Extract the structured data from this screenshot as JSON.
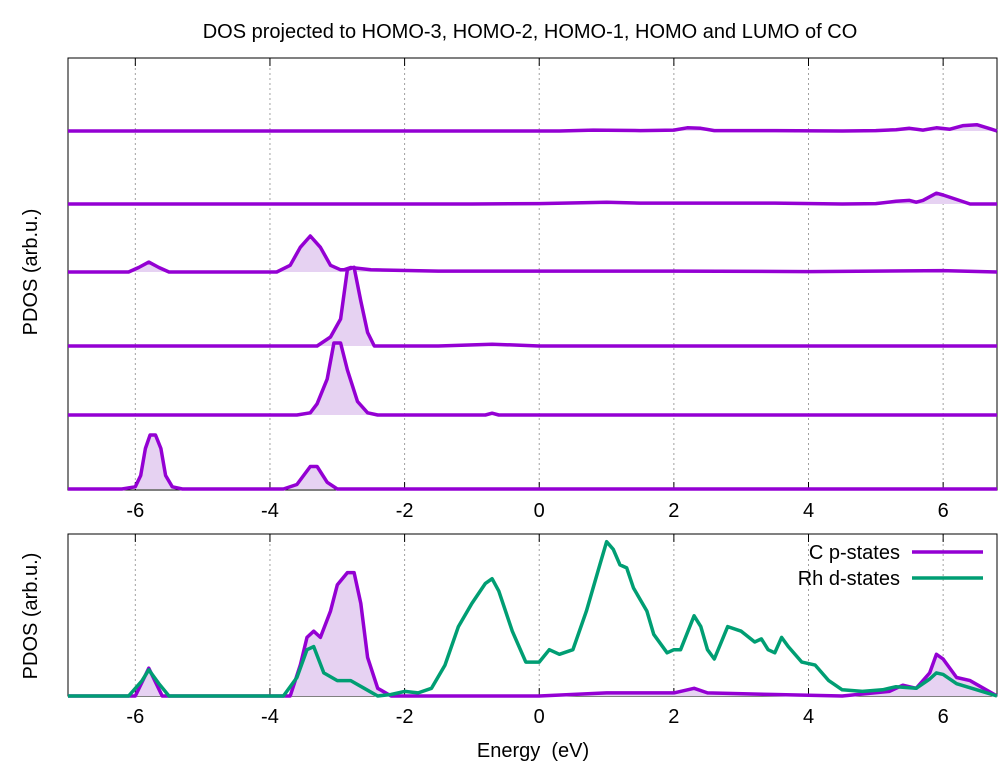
{
  "chart_data": [
    {
      "type": "area",
      "title": "DOS projected to HOMO-3, HOMO-2, HOMO-1, HOMO and LUMO of CO",
      "xlabel": "",
      "ylabel": "PDOS (arb.u.)",
      "xlim": [
        -7,
        6.8
      ],
      "x_ticks": [
        -6,
        -4,
        -2,
        0,
        2,
        4,
        6
      ],
      "x_tick_labels": [
        "-6",
        "-4",
        "-2",
        "0",
        "2",
        "4",
        "6"
      ],
      "grid": "vertical dotted",
      "series_color": "#9400d3",
      "fill_color": "#e6d2f2",
      "panels_top_to_bottom": [
        {
          "baseline": 0.0,
          "points": [
            [
              -7,
              0.0
            ],
            [
              0.3,
              0.0
            ],
            [
              0.8,
              0.02
            ],
            [
              1.5,
              0.01
            ],
            [
              2.0,
              0.02
            ],
            [
              2.2,
              0.07
            ],
            [
              2.4,
              0.06
            ],
            [
              2.6,
              0.01
            ],
            [
              3.5,
              0.01
            ],
            [
              4.5,
              0.0
            ],
            [
              5.0,
              0.01
            ],
            [
              5.3,
              0.03
            ],
            [
              5.5,
              0.06
            ],
            [
              5.7,
              0.02
            ],
            [
              5.9,
              0.07
            ],
            [
              6.1,
              0.04
            ],
            [
              6.3,
              0.12
            ],
            [
              6.5,
              0.14
            ],
            [
              6.7,
              0.05
            ],
            [
              6.8,
              0.0
            ]
          ]
        },
        {
          "baseline": 0.0,
          "points": [
            [
              -7,
              0.0
            ],
            [
              -1.0,
              0.0
            ],
            [
              0.0,
              0.01
            ],
            [
              1.0,
              0.04
            ],
            [
              1.5,
              0.02
            ],
            [
              2.5,
              0.02
            ],
            [
              3.5,
              0.02
            ],
            [
              4.5,
              0.0
            ],
            [
              5.0,
              0.01
            ],
            [
              5.3,
              0.06
            ],
            [
              5.5,
              0.08
            ],
            [
              5.6,
              0.04
            ],
            [
              5.7,
              0.08
            ],
            [
              5.9,
              0.24
            ],
            [
              6.0,
              0.2
            ],
            [
              6.2,
              0.1
            ],
            [
              6.4,
              0.0
            ],
            [
              6.8,
              0.0
            ]
          ]
        },
        {
          "baseline": 0.0,
          "points": [
            [
              -7,
              0.0
            ],
            [
              -6.1,
              0.0
            ],
            [
              -5.95,
              0.1
            ],
            [
              -5.8,
              0.22
            ],
            [
              -5.65,
              0.1
            ],
            [
              -5.5,
              0.0
            ],
            [
              -3.9,
              0.0
            ],
            [
              -3.7,
              0.15
            ],
            [
              -3.55,
              0.55
            ],
            [
              -3.4,
              0.8
            ],
            [
              -3.25,
              0.55
            ],
            [
              -3.1,
              0.15
            ],
            [
              -2.95,
              0.05
            ],
            [
              -2.9,
              0.05
            ],
            [
              -2.8,
              0.1
            ],
            [
              -2.5,
              0.05
            ],
            [
              -1.5,
              0.02
            ],
            [
              0.0,
              0.02
            ],
            [
              2.0,
              0.02
            ],
            [
              4.0,
              0.01
            ],
            [
              6.0,
              0.03
            ],
            [
              6.8,
              0.0
            ]
          ]
        },
        {
          "baseline": 0.0,
          "points": [
            [
              -7,
              0.0
            ],
            [
              -3.3,
              0.0
            ],
            [
              -3.1,
              0.2
            ],
            [
              -2.95,
              0.6
            ],
            [
              -2.85,
              1.7
            ],
            [
              -2.75,
              1.75
            ],
            [
              -2.65,
              1.0
            ],
            [
              -2.55,
              0.3
            ],
            [
              -2.45,
              0.0
            ],
            [
              -1.5,
              0.0
            ],
            [
              -0.7,
              0.04
            ],
            [
              0.0,
              0.0
            ],
            [
              6.8,
              0.0
            ]
          ]
        },
        {
          "baseline": 0.0,
          "points": [
            [
              -7,
              0.0
            ],
            [
              -3.6,
              0.0
            ],
            [
              -3.4,
              0.05
            ],
            [
              -3.3,
              0.25
            ],
            [
              -3.15,
              0.8
            ],
            [
              -3.05,
              1.6
            ],
            [
              -2.95,
              1.6
            ],
            [
              -2.85,
              1.0
            ],
            [
              -2.7,
              0.3
            ],
            [
              -2.55,
              0.05
            ],
            [
              -2.4,
              0.0
            ],
            [
              -0.8,
              0.0
            ],
            [
              -0.7,
              0.04
            ],
            [
              -0.6,
              0.0
            ],
            [
              6.8,
              0.0
            ]
          ]
        },
        {
          "baseline": 0.0,
          "points": [
            [
              -7,
              0.0
            ],
            [
              -6.2,
              0.0
            ],
            [
              -6.0,
              0.05
            ],
            [
              -5.92,
              0.3
            ],
            [
              -5.85,
              0.9
            ],
            [
              -5.78,
              1.2
            ],
            [
              -5.7,
              1.2
            ],
            [
              -5.62,
              0.9
            ],
            [
              -5.55,
              0.3
            ],
            [
              -5.45,
              0.05
            ],
            [
              -5.3,
              0.0
            ],
            [
              -3.8,
              0.0
            ],
            [
              -3.6,
              0.1
            ],
            [
              -3.4,
              0.5
            ],
            [
              -3.3,
              0.5
            ],
            [
              -3.15,
              0.15
            ],
            [
              -3.0,
              0.0
            ],
            [
              6.8,
              0.0
            ]
          ]
        }
      ]
    },
    {
      "type": "area",
      "title": "",
      "xlabel": "Energy  (eV)",
      "ylabel": "PDOS (arb.u.)",
      "xlim": [
        -7,
        6.8
      ],
      "ylim": [
        0,
        1.05
      ],
      "x_ticks": [
        -6,
        -4,
        -2,
        0,
        2,
        4,
        6
      ],
      "x_tick_labels": [
        "-6",
        "-4",
        "-2",
        "0",
        "2",
        "4",
        "6"
      ],
      "grid": "vertical dotted",
      "legend": "top-right",
      "series": [
        {
          "name": "C p-states",
          "color": "#9400d3",
          "fill": true,
          "points": [
            [
              -7,
              0.0
            ],
            [
              -6.0,
              0.0
            ],
            [
              -5.8,
              0.18
            ],
            [
              -5.6,
              0.0
            ],
            [
              -3.7,
              0.0
            ],
            [
              -3.55,
              0.2
            ],
            [
              -3.45,
              0.38
            ],
            [
              -3.35,
              0.42
            ],
            [
              -3.25,
              0.38
            ],
            [
              -3.1,
              0.55
            ],
            [
              -3.0,
              0.72
            ],
            [
              -2.85,
              0.8
            ],
            [
              -2.75,
              0.8
            ],
            [
              -2.65,
              0.6
            ],
            [
              -2.55,
              0.25
            ],
            [
              -2.4,
              0.05
            ],
            [
              -2.2,
              0.0
            ],
            [
              0.0,
              0.0
            ],
            [
              1.0,
              0.02
            ],
            [
              2.0,
              0.02
            ],
            [
              2.3,
              0.05
            ],
            [
              2.5,
              0.02
            ],
            [
              3.5,
              0.01
            ],
            [
              4.5,
              0.0
            ],
            [
              5.2,
              0.03
            ],
            [
              5.4,
              0.07
            ],
            [
              5.6,
              0.05
            ],
            [
              5.8,
              0.15
            ],
            [
              5.9,
              0.27
            ],
            [
              6.0,
              0.24
            ],
            [
              6.2,
              0.12
            ],
            [
              6.4,
              0.1
            ],
            [
              6.6,
              0.05
            ],
            [
              6.8,
              0.0
            ]
          ]
        },
        {
          "name": "Rh d-states",
          "color": "#009e73",
          "fill": false,
          "points": [
            [
              -7,
              0.0
            ],
            [
              -6.1,
              0.0
            ],
            [
              -5.9,
              0.1
            ],
            [
              -5.8,
              0.17
            ],
            [
              -5.65,
              0.08
            ],
            [
              -5.5,
              0.0
            ],
            [
              -3.8,
              0.0
            ],
            [
              -3.6,
              0.12
            ],
            [
              -3.45,
              0.3
            ],
            [
              -3.35,
              0.32
            ],
            [
              -3.2,
              0.15
            ],
            [
              -3.0,
              0.1
            ],
            [
              -2.8,
              0.1
            ],
            [
              -2.6,
              0.05
            ],
            [
              -2.4,
              0.0
            ],
            [
              -2.2,
              0.01
            ],
            [
              -2.0,
              0.03
            ],
            [
              -1.8,
              0.02
            ],
            [
              -1.6,
              0.05
            ],
            [
              -1.4,
              0.2
            ],
            [
              -1.2,
              0.45
            ],
            [
              -1.0,
              0.6
            ],
            [
              -0.8,
              0.73
            ],
            [
              -0.7,
              0.76
            ],
            [
              -0.6,
              0.68
            ],
            [
              -0.4,
              0.42
            ],
            [
              -0.2,
              0.22
            ],
            [
              0.0,
              0.22
            ],
            [
              0.15,
              0.3
            ],
            [
              0.3,
              0.27
            ],
            [
              0.5,
              0.3
            ],
            [
              0.7,
              0.55
            ],
            [
              0.9,
              0.85
            ],
            [
              1.0,
              1.0
            ],
            [
              1.1,
              0.95
            ],
            [
              1.2,
              0.85
            ],
            [
              1.3,
              0.83
            ],
            [
              1.4,
              0.7
            ],
            [
              1.6,
              0.55
            ],
            [
              1.7,
              0.4
            ],
            [
              1.9,
              0.28
            ],
            [
              2.0,
              0.3
            ],
            [
              2.1,
              0.3
            ],
            [
              2.3,
              0.52
            ],
            [
              2.4,
              0.45
            ],
            [
              2.5,
              0.3
            ],
            [
              2.6,
              0.24
            ],
            [
              2.8,
              0.45
            ],
            [
              3.0,
              0.42
            ],
            [
              3.2,
              0.35
            ],
            [
              3.3,
              0.37
            ],
            [
              3.4,
              0.3
            ],
            [
              3.5,
              0.28
            ],
            [
              3.6,
              0.38
            ],
            [
              3.7,
              0.32
            ],
            [
              3.9,
              0.22
            ],
            [
              4.1,
              0.2
            ],
            [
              4.3,
              0.1
            ],
            [
              4.5,
              0.04
            ],
            [
              4.8,
              0.03
            ],
            [
              5.1,
              0.04
            ],
            [
              5.3,
              0.06
            ],
            [
              5.6,
              0.05
            ],
            [
              5.8,
              0.11
            ],
            [
              5.9,
              0.15
            ],
            [
              6.0,
              0.14
            ],
            [
              6.2,
              0.08
            ],
            [
              6.5,
              0.04
            ],
            [
              6.8,
              0.0
            ]
          ]
        }
      ]
    }
  ]
}
